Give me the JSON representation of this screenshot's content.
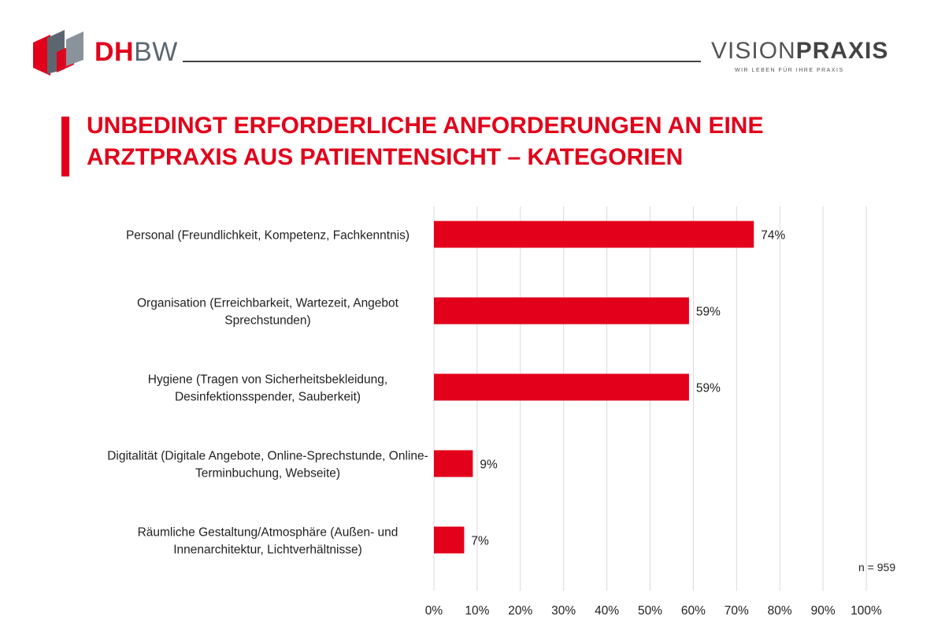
{
  "header": {
    "dhbw_primary": "DH",
    "dhbw_secondary": "BW",
    "vp_part1": "VISION",
    "vp_part2": "PRAXIS",
    "vp_tagline": "WIR LEBEN FÜR IHRE PRAXIS"
  },
  "title": {
    "line1": "UNBEDINGT ERFORDERLICHE ANFORDERUNGEN AN EINE",
    "line2": "ARZTPRAXIS AUS PATIENTENSICHT – KATEGORIEN"
  },
  "colors": {
    "accent": "#e2001a",
    "grid": "#d9d9d9",
    "logo_gray": "#5c6670"
  },
  "chart_data": {
    "type": "bar",
    "orientation": "horizontal",
    "categories": [
      [
        "Personal (Freundlichkeit, Kompetenz, Fachkenntnis)"
      ],
      [
        "Organisation (Erreichbarkeit, Wartezeit, Angebot",
        "Sprechstunden)"
      ],
      [
        "Hygiene (Tragen von Sicherheitsbekleidung,",
        "Desinfektionsspender, Sauberkeit)"
      ],
      [
        "Digitalität (Digitale Angebote, Online-Sprechstunde, Online-",
        "Terminbuchung, Webseite)"
      ],
      [
        "Räumliche Gestaltung/Atmosphäre (Außen- und",
        "Innenarchitektur, Lichtverhältnisse)"
      ]
    ],
    "values": [
      74,
      59,
      59,
      9,
      7
    ],
    "value_labels": [
      "74%",
      "59%",
      "59%",
      "9%",
      "7%"
    ],
    "xlim": [
      0,
      100
    ],
    "xticks": [
      "0%",
      "10%",
      "20%",
      "30%",
      "40%",
      "50%",
      "60%",
      "70%",
      "80%",
      "90%",
      "100%"
    ],
    "grid": true,
    "note": "n = 959"
  }
}
